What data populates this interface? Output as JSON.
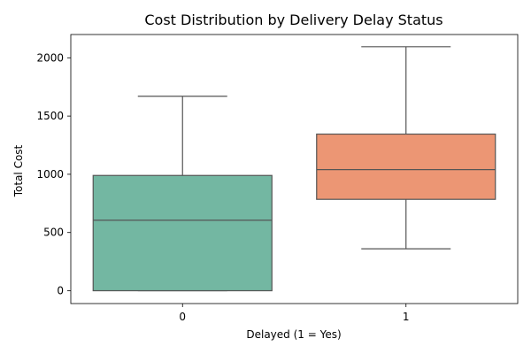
{
  "chart_data": {
    "type": "box",
    "title": "Cost Distribution by Delivery Delay Status",
    "xlabel": "Delayed (1 = Yes)",
    "ylabel": "Total Cost",
    "categories": [
      "0",
      "1"
    ],
    "yticks": [
      0,
      500,
      1000,
      1500,
      2000
    ],
    "ylim": [
      -110,
      2200
    ],
    "grid": false,
    "legend": "none",
    "series": [
      {
        "category": "0",
        "whisker_low": 0,
        "q1": 0,
        "median": 605,
        "q3": 990,
        "whisker_high": 1670,
        "color": "#73b7a2"
      },
      {
        "category": "1",
        "whisker_low": 360,
        "q1": 785,
        "median": 1040,
        "q3": 1345,
        "whisker_high": 2095,
        "color": "#ec9674"
      }
    ]
  }
}
